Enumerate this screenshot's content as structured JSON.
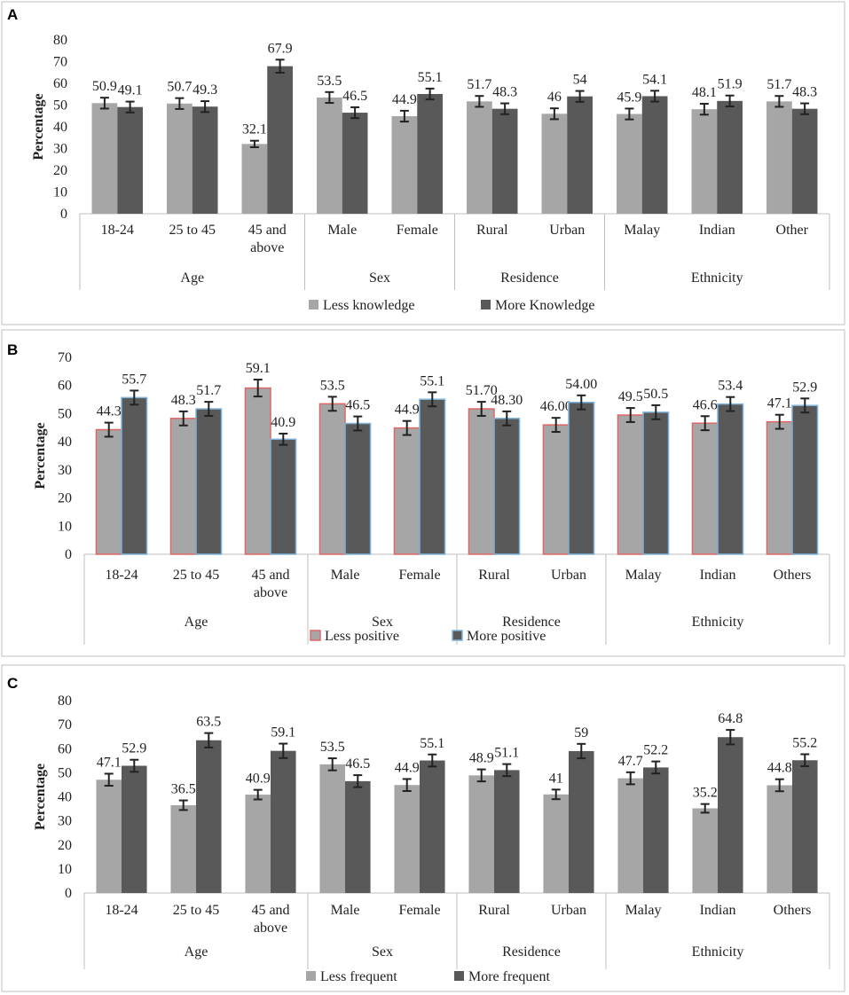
{
  "chart_data": [
    {
      "panel": "A",
      "type": "bar",
      "ylabel": "Percentage",
      "ylim": [
        0,
        80
      ],
      "yticks": [
        0,
        10,
        20,
        30,
        40,
        50,
        60,
        70,
        80
      ],
      "groups": [
        {
          "name": "Age",
          "categories": [
            "18-24",
            "25 to 45",
            "45 and\nabove"
          ]
        },
        {
          "name": "Sex",
          "categories": [
            "Male",
            "Female"
          ]
        },
        {
          "name": "Residence",
          "categories": [
            "Rural",
            "Urban"
          ]
        },
        {
          "name": "Ethnicity",
          "categories": [
            "Malay",
            "Indian",
            "Other"
          ]
        }
      ],
      "series": [
        {
          "name": "Less knowledge",
          "color": "#a6a6a6",
          "edge": "none",
          "values": [
            50.9,
            50.7,
            32.1,
            53.5,
            44.9,
            51.7,
            46,
            45.9,
            48.1,
            51.7
          ],
          "labels": [
            "50.9",
            "50.7",
            "32.1",
            "53.5",
            "44.9",
            "51.7",
            "46",
            "45.9",
            "48.1",
            "51.7"
          ],
          "errors": [
            2.5,
            2.5,
            1.5,
            2.5,
            2.5,
            2.5,
            2.5,
            2.5,
            2.5,
            2.5
          ]
        },
        {
          "name": "More Knowledge",
          "color": "#595959",
          "edge": "none",
          "values": [
            49.1,
            49.3,
            67.9,
            46.5,
            55.1,
            48.3,
            54,
            54.1,
            51.9,
            48.3
          ],
          "labels": [
            "49.1",
            "49.3",
            "67.9",
            "46.5",
            "55.1",
            "48.3",
            "54",
            "54.1",
            "51.9",
            "48.3"
          ],
          "errors": [
            2.5,
            2.5,
            3.0,
            2.5,
            2.5,
            2.5,
            2.5,
            2.5,
            2.5,
            2.5
          ]
        }
      ],
      "legend_position": "bottom"
    },
    {
      "panel": "B",
      "type": "bar",
      "ylabel": "Percentage",
      "ylim": [
        0,
        70
      ],
      "yticks": [
        0,
        10,
        20,
        30,
        40,
        50,
        60,
        70
      ],
      "groups": [
        {
          "name": "Age",
          "categories": [
            "18-24",
            "25 to 45",
            "45 and\nabove"
          ]
        },
        {
          "name": "Sex",
          "categories": [
            "Male",
            "Female"
          ]
        },
        {
          "name": "Residence",
          "categories": [
            "Rural",
            "Urban"
          ]
        },
        {
          "name": "Ethnicity",
          "categories": [
            "Malay",
            "Indian",
            "Others"
          ]
        }
      ],
      "series": [
        {
          "name": "Less positive",
          "color": "#a6a6a6",
          "edge": "#e06666",
          "values": [
            44.3,
            48.3,
            59.1,
            53.5,
            44.9,
            51.7,
            46.0,
            49.5,
            46.6,
            47.1
          ],
          "labels": [
            "44.3",
            "48.3",
            "59.1",
            "53.5",
            "44.9",
            "51.70",
            "46.00",
            "49.5",
            "46.6",
            "47.1"
          ],
          "errors": [
            2.5,
            2.5,
            3.0,
            2.5,
            2.5,
            2.5,
            2.5,
            2.5,
            2.5,
            2.5
          ]
        },
        {
          "name": "More positive",
          "color": "#595959",
          "edge": "#7fb2d9",
          "values": [
            55.7,
            51.7,
            40.9,
            46.5,
            55.1,
            48.3,
            54.0,
            50.5,
            53.4,
            52.9
          ],
          "labels": [
            "55.7",
            "51.7",
            "40.9",
            "46.5",
            "55.1",
            "48.30",
            "54.00",
            "50.5",
            "53.4",
            "52.9"
          ],
          "errors": [
            2.5,
            2.5,
            2.0,
            2.5,
            2.5,
            2.5,
            2.5,
            2.5,
            2.5,
            2.5
          ]
        }
      ],
      "legend_position": "bottom"
    },
    {
      "panel": "C",
      "type": "bar",
      "ylabel": "Percentage",
      "ylim": [
        0,
        80
      ],
      "yticks": [
        0,
        10,
        20,
        30,
        40,
        50,
        60,
        70,
        80
      ],
      "groups": [
        {
          "name": "Age",
          "categories": [
            "18-24",
            "25 to 45",
            "45 and\nabove"
          ]
        },
        {
          "name": "Sex",
          "categories": [
            "Male",
            "Female"
          ]
        },
        {
          "name": "Residence",
          "categories": [
            "Rural",
            "Urban"
          ]
        },
        {
          "name": "Ethnicity",
          "categories": [
            "Malay",
            "Indian",
            "Others"
          ]
        }
      ],
      "series": [
        {
          "name": "Less frequent",
          "color": "#a6a6a6",
          "edge": "none",
          "values": [
            47.1,
            36.5,
            40.9,
            53.5,
            44.9,
            48.9,
            41,
            47.7,
            35.2,
            44.8
          ],
          "labels": [
            "47.1",
            "36.5",
            "40.9",
            "53.5",
            "44.9",
            "48.9",
            "41",
            "47.7",
            "35.2",
            "44.8"
          ],
          "errors": [
            2.5,
            2.0,
            2.0,
            2.5,
            2.5,
            2.5,
            2.0,
            2.5,
            1.8,
            2.5
          ]
        },
        {
          "name": "More frequent",
          "color": "#595959",
          "edge": "none",
          "values": [
            52.9,
            63.5,
            59.1,
            46.5,
            55.1,
            51.1,
            59,
            52.2,
            64.8,
            55.2
          ],
          "labels": [
            "52.9",
            "63.5",
            "59.1",
            "46.5",
            "55.1",
            "51.1",
            "59",
            "52.2",
            "64.8",
            "55.2"
          ],
          "errors": [
            2.5,
            3.0,
            3.0,
            2.5,
            2.5,
            2.5,
            3.0,
            2.5,
            3.0,
            2.5
          ]
        }
      ],
      "legend_position": "bottom"
    }
  ]
}
